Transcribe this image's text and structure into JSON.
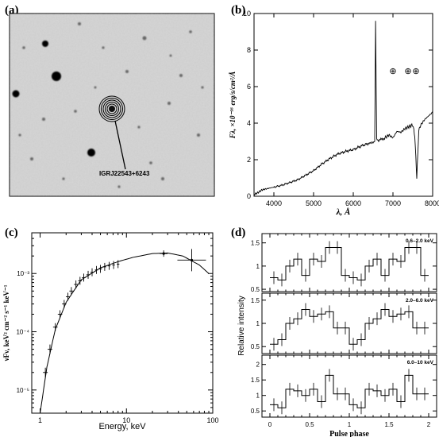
{
  "panels": {
    "a": {
      "label": "(a)",
      "source_label": "IGRJ22543+6243"
    },
    "b": {
      "label": "(b)"
    },
    "c": {
      "label": "(c)"
    },
    "d": {
      "label": "(d)"
    }
  },
  "chart_data": [
    {
      "panel": "b",
      "type": "line",
      "xlabel": "λ, Å",
      "ylabel": "Fλ, ×10⁻¹⁶ erg/s/cm²/Å",
      "xlim": [
        3500,
        8000
      ],
      "ylim": [
        0,
        10
      ],
      "xticks": [
        4000,
        5000,
        6000,
        7000,
        8000
      ],
      "yticks": [
        0,
        2,
        4,
        6,
        8,
        10
      ],
      "grid": false,
      "annotation_symbols": [
        "⊕",
        "⊕",
        "⊕"
      ],
      "x": [
        3500,
        3600,
        3700,
        3800,
        3900,
        4000,
        4200,
        4400,
        4600,
        4800,
        5000,
        5200,
        5400,
        5600,
        5800,
        6000,
        6200,
        6400,
        6500,
        6540,
        6563,
        6590,
        6650,
        6800,
        6900,
        7000,
        7100,
        7200,
        7300,
        7400,
        7500,
        7550,
        7600,
        7650,
        7700,
        7800,
        7900,
        8000
      ],
      "y": [
        0.1,
        0.2,
        0.35,
        0.4,
        0.45,
        0.5,
        0.6,
        0.75,
        0.9,
        1.15,
        1.4,
        1.75,
        2.05,
        2.3,
        2.45,
        2.55,
        2.75,
        2.9,
        2.95,
        3.0,
        9.6,
        3.1,
        3.05,
        3.2,
        3.35,
        3.2,
        3.55,
        3.5,
        3.7,
        3.8,
        3.9,
        3.3,
        1.0,
        3.6,
        3.9,
        4.2,
        4.4,
        4.6
      ]
    },
    {
      "panel": "c",
      "type": "scatter",
      "xlabel": "Energy, keV",
      "ylabel": "νFν, keV² cm⁻² s⁻¹ keV⁻¹",
      "xscale": "log",
      "yscale": "log",
      "xlim": [
        0.8,
        100
      ],
      "ylim": [
        4e-06,
        0.005
      ],
      "xtick_labels": [
        "1",
        "10",
        "100"
      ],
      "ytick_labels": [
        "10⁻³",
        "10⁻⁴",
        "10⁻⁵"
      ],
      "series": [
        {
          "points": [
            [
              1.15,
              2e-05
            ],
            [
              1.3,
              5e-05
            ],
            [
              1.5,
              0.00012
            ],
            [
              1.7,
              0.0002
            ],
            [
              1.9,
              0.0003
            ],
            [
              2.1,
              0.0004
            ],
            [
              2.3,
              0.0005
            ],
            [
              2.6,
              0.00065
            ],
            [
              2.9,
              0.00075
            ],
            [
              3.2,
              0.00085
            ],
            [
              3.6,
              0.00095
            ],
            [
              4.0,
              0.00105
            ],
            [
              4.5,
              0.00115
            ],
            [
              5.0,
              0.0012
            ],
            [
              5.6,
              0.0013
            ],
            [
              6.3,
              0.00135
            ],
            [
              7.1,
              0.0014
            ],
            [
              8.0,
              0.00145
            ],
            [
              27,
              0.0022
            ],
            [
              57,
              0.0017
            ]
          ]
        },
        {
          "model": [
            [
              1.0,
              4e-06
            ],
            [
              1.2,
              2.5e-05
            ],
            [
              1.5,
              0.00011
            ],
            [
              2,
              0.00032
            ],
            [
              3,
              0.00078
            ],
            [
              5,
              0.00125
            ],
            [
              8,
              0.0016
            ],
            [
              12,
              0.0019
            ],
            [
              20,
              0.0022
            ],
            [
              30,
              0.00225
            ],
            [
              45,
              0.002
            ],
            [
              70,
              0.0014
            ],
            [
              90,
              0.001
            ]
          ]
        }
      ]
    },
    {
      "panel": "d",
      "type": "line",
      "xlabel": "Pulse phase",
      "ylabel": "Relative intensity",
      "xlim": [
        -0.1,
        2.1
      ],
      "xticks": [
        0,
        0.5,
        1,
        1.5,
        2
      ],
      "phase_bin_width": 0.1,
      "series": [
        {
          "name": "0.6–2.0 keV",
          "ylim": [
            0.45,
            1.7
          ],
          "yticks": [
            0.5,
            1,
            1.5
          ],
          "phase": [
            0.05,
            0.15,
            0.25,
            0.35,
            0.45,
            0.55,
            0.65,
            0.75,
            0.85,
            0.95
          ],
          "values": [
            0.75,
            0.7,
            1.0,
            1.15,
            0.8,
            1.15,
            1.1,
            1.4,
            1.4,
            0.8
          ]
        },
        {
          "name": "2.0–6.0 keV",
          "ylim": [
            0.35,
            1.65
          ],
          "yticks": [
            0.5,
            1,
            1.5
          ],
          "phase": [
            0.05,
            0.15,
            0.25,
            0.35,
            0.45,
            0.55,
            0.65,
            0.75,
            0.85,
            0.95
          ],
          "values": [
            0.55,
            0.65,
            1.0,
            1.1,
            1.3,
            1.15,
            1.2,
            1.25,
            0.9,
            0.9
          ]
        },
        {
          "name": "6.0–10 keV",
          "ylim": [
            0.3,
            2.3
          ],
          "yticks": [
            0.5,
            1,
            1.5,
            2
          ],
          "phase": [
            0.05,
            0.15,
            0.25,
            0.35,
            0.45,
            0.55,
            0.65,
            0.75,
            0.85,
            0.95
          ],
          "values": [
            0.7,
            0.6,
            1.2,
            1.15,
            1.0,
            1.2,
            0.8,
            1.65,
            1.05,
            1.05
          ]
        }
      ]
    }
  ]
}
